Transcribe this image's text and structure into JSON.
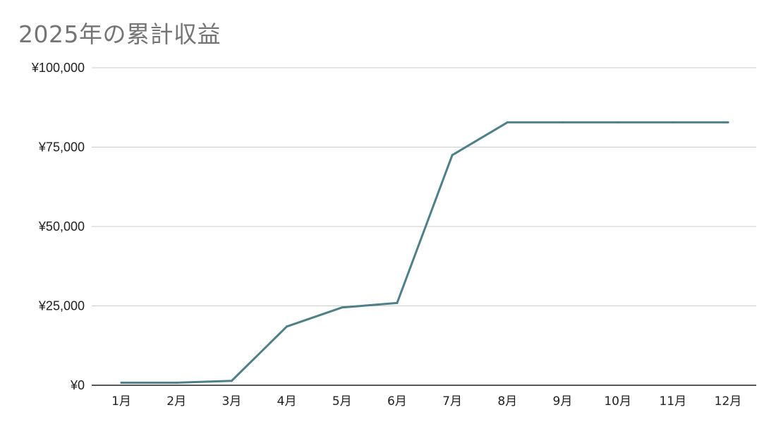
{
  "chart_data": {
    "type": "line",
    "title": "2025年の累計収益",
    "xlabel": "",
    "ylabel": "",
    "categories": [
      "1月",
      "2月",
      "3月",
      "4月",
      "5月",
      "6月",
      "7月",
      "8月",
      "9月",
      "10月",
      "11月",
      "12月"
    ],
    "series": [
      {
        "values": [
          800,
          800,
          1400,
          18500,
          24500,
          25900,
          72500,
          82800,
          82800,
          82800,
          82800,
          82800
        ]
      }
    ],
    "ylim": [
      0,
      100000
    ],
    "yticks": [
      0,
      25000,
      50000,
      75000,
      100000
    ],
    "ytick_labels": [
      "¥0",
      "¥25,000",
      "¥50,000",
      "¥75,000",
      "¥100,000"
    ],
    "grid": true,
    "legend": "none",
    "colors": {
      "line": "#4e8088",
      "grid": "#cccccc",
      "axis": "#222222",
      "title": "#757575"
    }
  }
}
